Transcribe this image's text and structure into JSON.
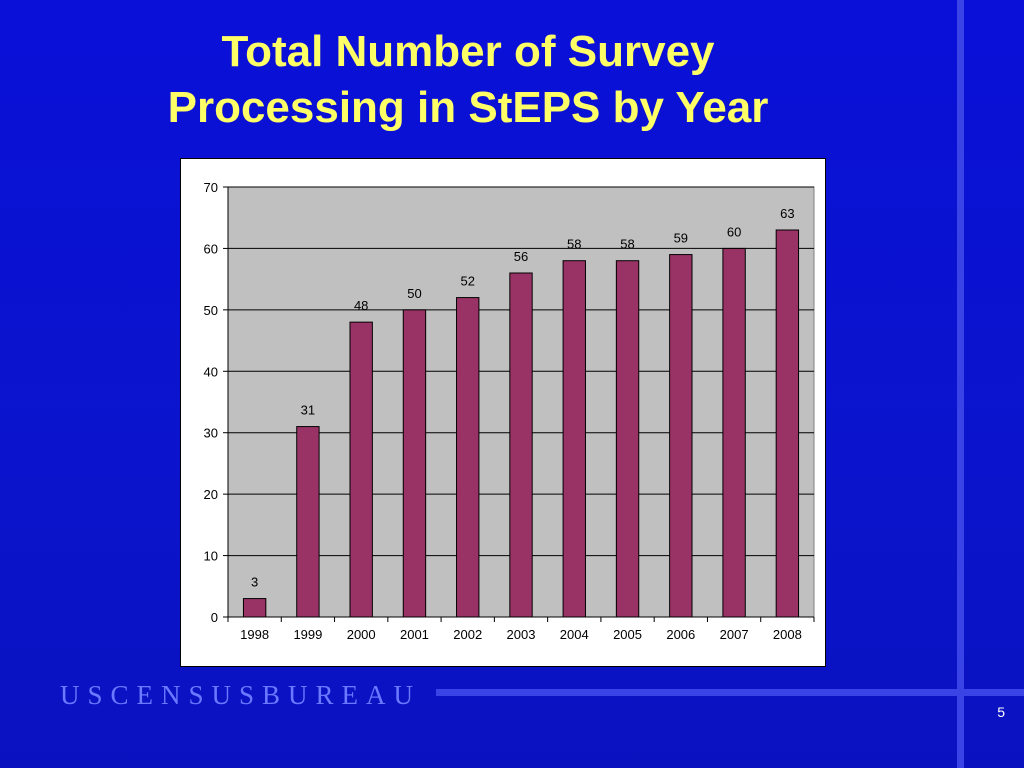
{
  "slide": {
    "title_line1": "Total Number of Survey",
    "title_line2": "Processing in StEPS by Year",
    "logo_text": "USCENSUSBUREAU",
    "page_number": "5",
    "colors": {
      "background": "#0a10d8",
      "title": "#ffff66",
      "accent_lines": "#3a43e6",
      "logo": "#6c78ff"
    }
  },
  "chart_data": {
    "type": "bar",
    "categories": [
      "1998",
      "1999",
      "2000",
      "2001",
      "2002",
      "2003",
      "2004",
      "2005",
      "2006",
      "2007",
      "2008"
    ],
    "values": [
      3,
      31,
      48,
      50,
      52,
      56,
      58,
      58,
      59,
      60,
      63
    ],
    "ylim": [
      0,
      70
    ],
    "yticks": [
      "0",
      "10",
      "20",
      "30",
      "40",
      "50",
      "60",
      "70"
    ],
    "grid": true,
    "legend": "none",
    "bar_color": "#993366",
    "plot_background": "#c0c0c0"
  }
}
